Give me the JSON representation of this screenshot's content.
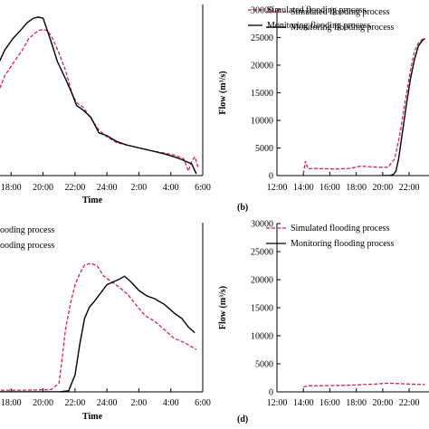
{
  "chart_data": [
    {
      "id": "a",
      "type": "line",
      "panel_label": "",
      "xlabel": "Time",
      "ylabel": "",
      "x_ticks": [
        "18:00",
        "20:00",
        "22:00",
        "24:00",
        "2:00",
        "4:00",
        "6:00"
      ],
      "y_ticks": [],
      "legend": [
        "Simulated flooding process",
        "Monitoring flooding process"
      ],
      "legend_placement": "top-right",
      "series": [
        {
          "name": "Simulated flooding process",
          "style": "dashed",
          "color": "#d6225a",
          "x": [
            16.0,
            16.6,
            17.1,
            17.6,
            18.2,
            18.7,
            19.1,
            19.5,
            19.8,
            20.0,
            20.3,
            20.6,
            21.0,
            21.4,
            21.8,
            22.1,
            22.5,
            23.0,
            23.5,
            24.0,
            24.6,
            25.2,
            25.8,
            26.3,
            26.9,
            27.5,
            28.2,
            28.8,
            29.1,
            29.3,
            29.5,
            29.7
          ],
          "y": [
            4.5,
            9.0,
            14.0,
            17.5,
            20.0,
            22.0,
            24.0,
            25.0,
            25.5,
            25.6,
            25.4,
            24.0,
            21.5,
            18.5,
            14.5,
            12.8,
            12.0,
            10.0,
            8.0,
            6.8,
            5.8,
            5.4,
            5.0,
            4.7,
            4.3,
            4.0,
            3.6,
            3.0,
            0.8,
            2.5,
            3.3,
            1.5
          ]
        },
        {
          "name": "Monitoring flooding process",
          "style": "solid",
          "color": "#000000",
          "x": [
            16.0,
            16.6,
            17.1,
            17.6,
            18.1,
            18.6,
            19.0,
            19.4,
            19.7,
            20.0,
            20.2,
            20.5,
            20.9,
            21.4,
            21.8,
            22.1,
            22.5,
            23.0,
            23.5,
            24.0,
            24.6,
            25.2,
            25.8,
            26.4,
            27.0,
            27.6,
            28.2,
            28.7,
            29.0,
            29.3,
            29.6
          ],
          "y": [
            7.0,
            13.5,
            19.0,
            22.0,
            24.0,
            25.5,
            26.8,
            27.6,
            27.8,
            27.6,
            26.0,
            23.5,
            20.0,
            17.0,
            14.5,
            12.3,
            11.5,
            10.2,
            7.5,
            7.0,
            6.0,
            5.4,
            5.0,
            4.6,
            4.2,
            3.8,
            3.3,
            2.8,
            2.4,
            2.1,
            0.3
          ]
        }
      ]
    },
    {
      "id": "b",
      "type": "line",
      "panel_label": "(b)",
      "xlabel": "Time",
      "ylabel": "Flow (m³/s)",
      "x_ticks": [
        "12:00",
        "14:00",
        "16:00",
        "18:00",
        "20:00",
        "22:00"
      ],
      "y_ticks": [
        "0",
        "5000",
        "10000",
        "15000",
        "20000",
        "25000",
        "30000"
      ],
      "ylim": [
        0,
        30000
      ],
      "legend": [
        "Simulated flooding process",
        "Monitoring flooding process"
      ],
      "legend_placement": "top",
      "series": [
        {
          "name": "Simulated flooding process",
          "style": "dashed",
          "color": "#d6225a",
          "x": [
            14.0,
            14.15,
            14.35,
            14.6,
            15.5,
            16.5,
            17.5,
            18.3,
            19.0,
            19.7,
            20.4,
            20.9,
            21.3,
            21.7,
            22.1,
            22.4,
            22.7,
            23.0,
            23.2
          ],
          "y": [
            300,
            2600,
            1200,
            1300,
            1250,
            1200,
            1300,
            1700,
            1600,
            1500,
            1500,
            3000,
            7500,
            13500,
            19000,
            22500,
            24000,
            24700,
            24800
          ]
        },
        {
          "name": "Monitoring flooding process",
          "style": "solid",
          "color": "#000000",
          "x": [
            20.0,
            20.5,
            20.8,
            21.0,
            21.2,
            21.5,
            21.8,
            22.1,
            22.4,
            22.7,
            23.0,
            23.2
          ],
          "y": [
            0,
            0,
            200,
            800,
            3000,
            8000,
            13000,
            17500,
            21000,
            23500,
            24500,
            24800
          ]
        }
      ]
    },
    {
      "id": "c",
      "type": "line",
      "panel_label": "",
      "xlabel": "Time",
      "ylabel": "",
      "x_ticks": [
        "18:00",
        "20:00",
        "22:00",
        "24:00",
        "2:00",
        "4:00",
        "6:00"
      ],
      "y_ticks": [],
      "legend": [
        "Simulated flooding process",
        "Monitoring flooding process"
      ],
      "legend_partial_text": [
        "ooding process",
        "ooding process"
      ],
      "legend_placement": "top-left",
      "series": [
        {
          "name": "Simulated flooding process",
          "style": "dashed",
          "color": "#d6225a",
          "x": [
            16.0,
            17.5,
            19.0,
            20.5,
            21.0,
            21.2,
            21.4,
            21.7,
            22.0,
            22.3,
            22.6,
            23.0,
            23.4,
            23.8,
            24.3,
            24.8,
            25.3,
            25.8,
            26.4,
            27.0,
            27.6,
            28.2,
            28.8,
            29.3,
            29.6
          ],
          "y": [
            0.2,
            0.3,
            0.3,
            0.4,
            1.5,
            6.0,
            11.0,
            15.5,
            19.0,
            21.0,
            22.5,
            22.8,
            22.3,
            20.5,
            19.5,
            18.5,
            17.3,
            15.5,
            13.5,
            12.5,
            11.0,
            9.5,
            8.8,
            8.0,
            7.5
          ]
        },
        {
          "name": "Monitoring flooding process",
          "style": "solid",
          "color": "#000000",
          "x": [
            16.0,
            18.0,
            20.0,
            21.0,
            21.6,
            22.0,
            22.3,
            22.6,
            22.9,
            23.2,
            23.6,
            24.0,
            24.4,
            24.8,
            25.1,
            25.5,
            26.0,
            26.5,
            27.0,
            27.6,
            28.2,
            28.7,
            29.1,
            29.5
          ],
          "y": [
            0,
            0,
            0,
            0,
            0.2,
            3.0,
            8.5,
            13.0,
            15.0,
            16.0,
            17.5,
            19.0,
            19.5,
            20.0,
            20.5,
            19.5,
            18.0,
            17.0,
            16.5,
            15.5,
            14.0,
            13.0,
            11.5,
            10.5
          ]
        }
      ]
    },
    {
      "id": "d",
      "type": "line",
      "panel_label": "(d)",
      "xlabel": "Time",
      "ylabel": "Flow (m³/s)",
      "x_ticks": [
        "12:00",
        "14:00",
        "16:00",
        "18:00",
        "20:00",
        "22:00"
      ],
      "y_ticks": [
        "0",
        "5000",
        "10000",
        "15000",
        "20000",
        "25000",
        "30000"
      ],
      "ylim": [
        0,
        30000
      ],
      "legend": [
        "Simulated flooding process",
        "Monitoring flooding process"
      ],
      "legend_placement": "top",
      "series": [
        {
          "name": "Simulated flooding process",
          "style": "dashed",
          "color": "#d6225a",
          "x": [
            14.0,
            14.5,
            15.5,
            16.5,
            17.5,
            18.5,
            19.5,
            20.0,
            20.5,
            21.0,
            21.5,
            22.0,
            22.5,
            23.2
          ],
          "y": [
            900,
            1100,
            1100,
            1150,
            1200,
            1300,
            1400,
            1500,
            1550,
            1500,
            1450,
            1400,
            1350,
            1300
          ]
        },
        {
          "name": "Monitoring flooding process",
          "style": "solid",
          "color": "#000000",
          "x": [],
          "y": []
        }
      ]
    }
  ]
}
